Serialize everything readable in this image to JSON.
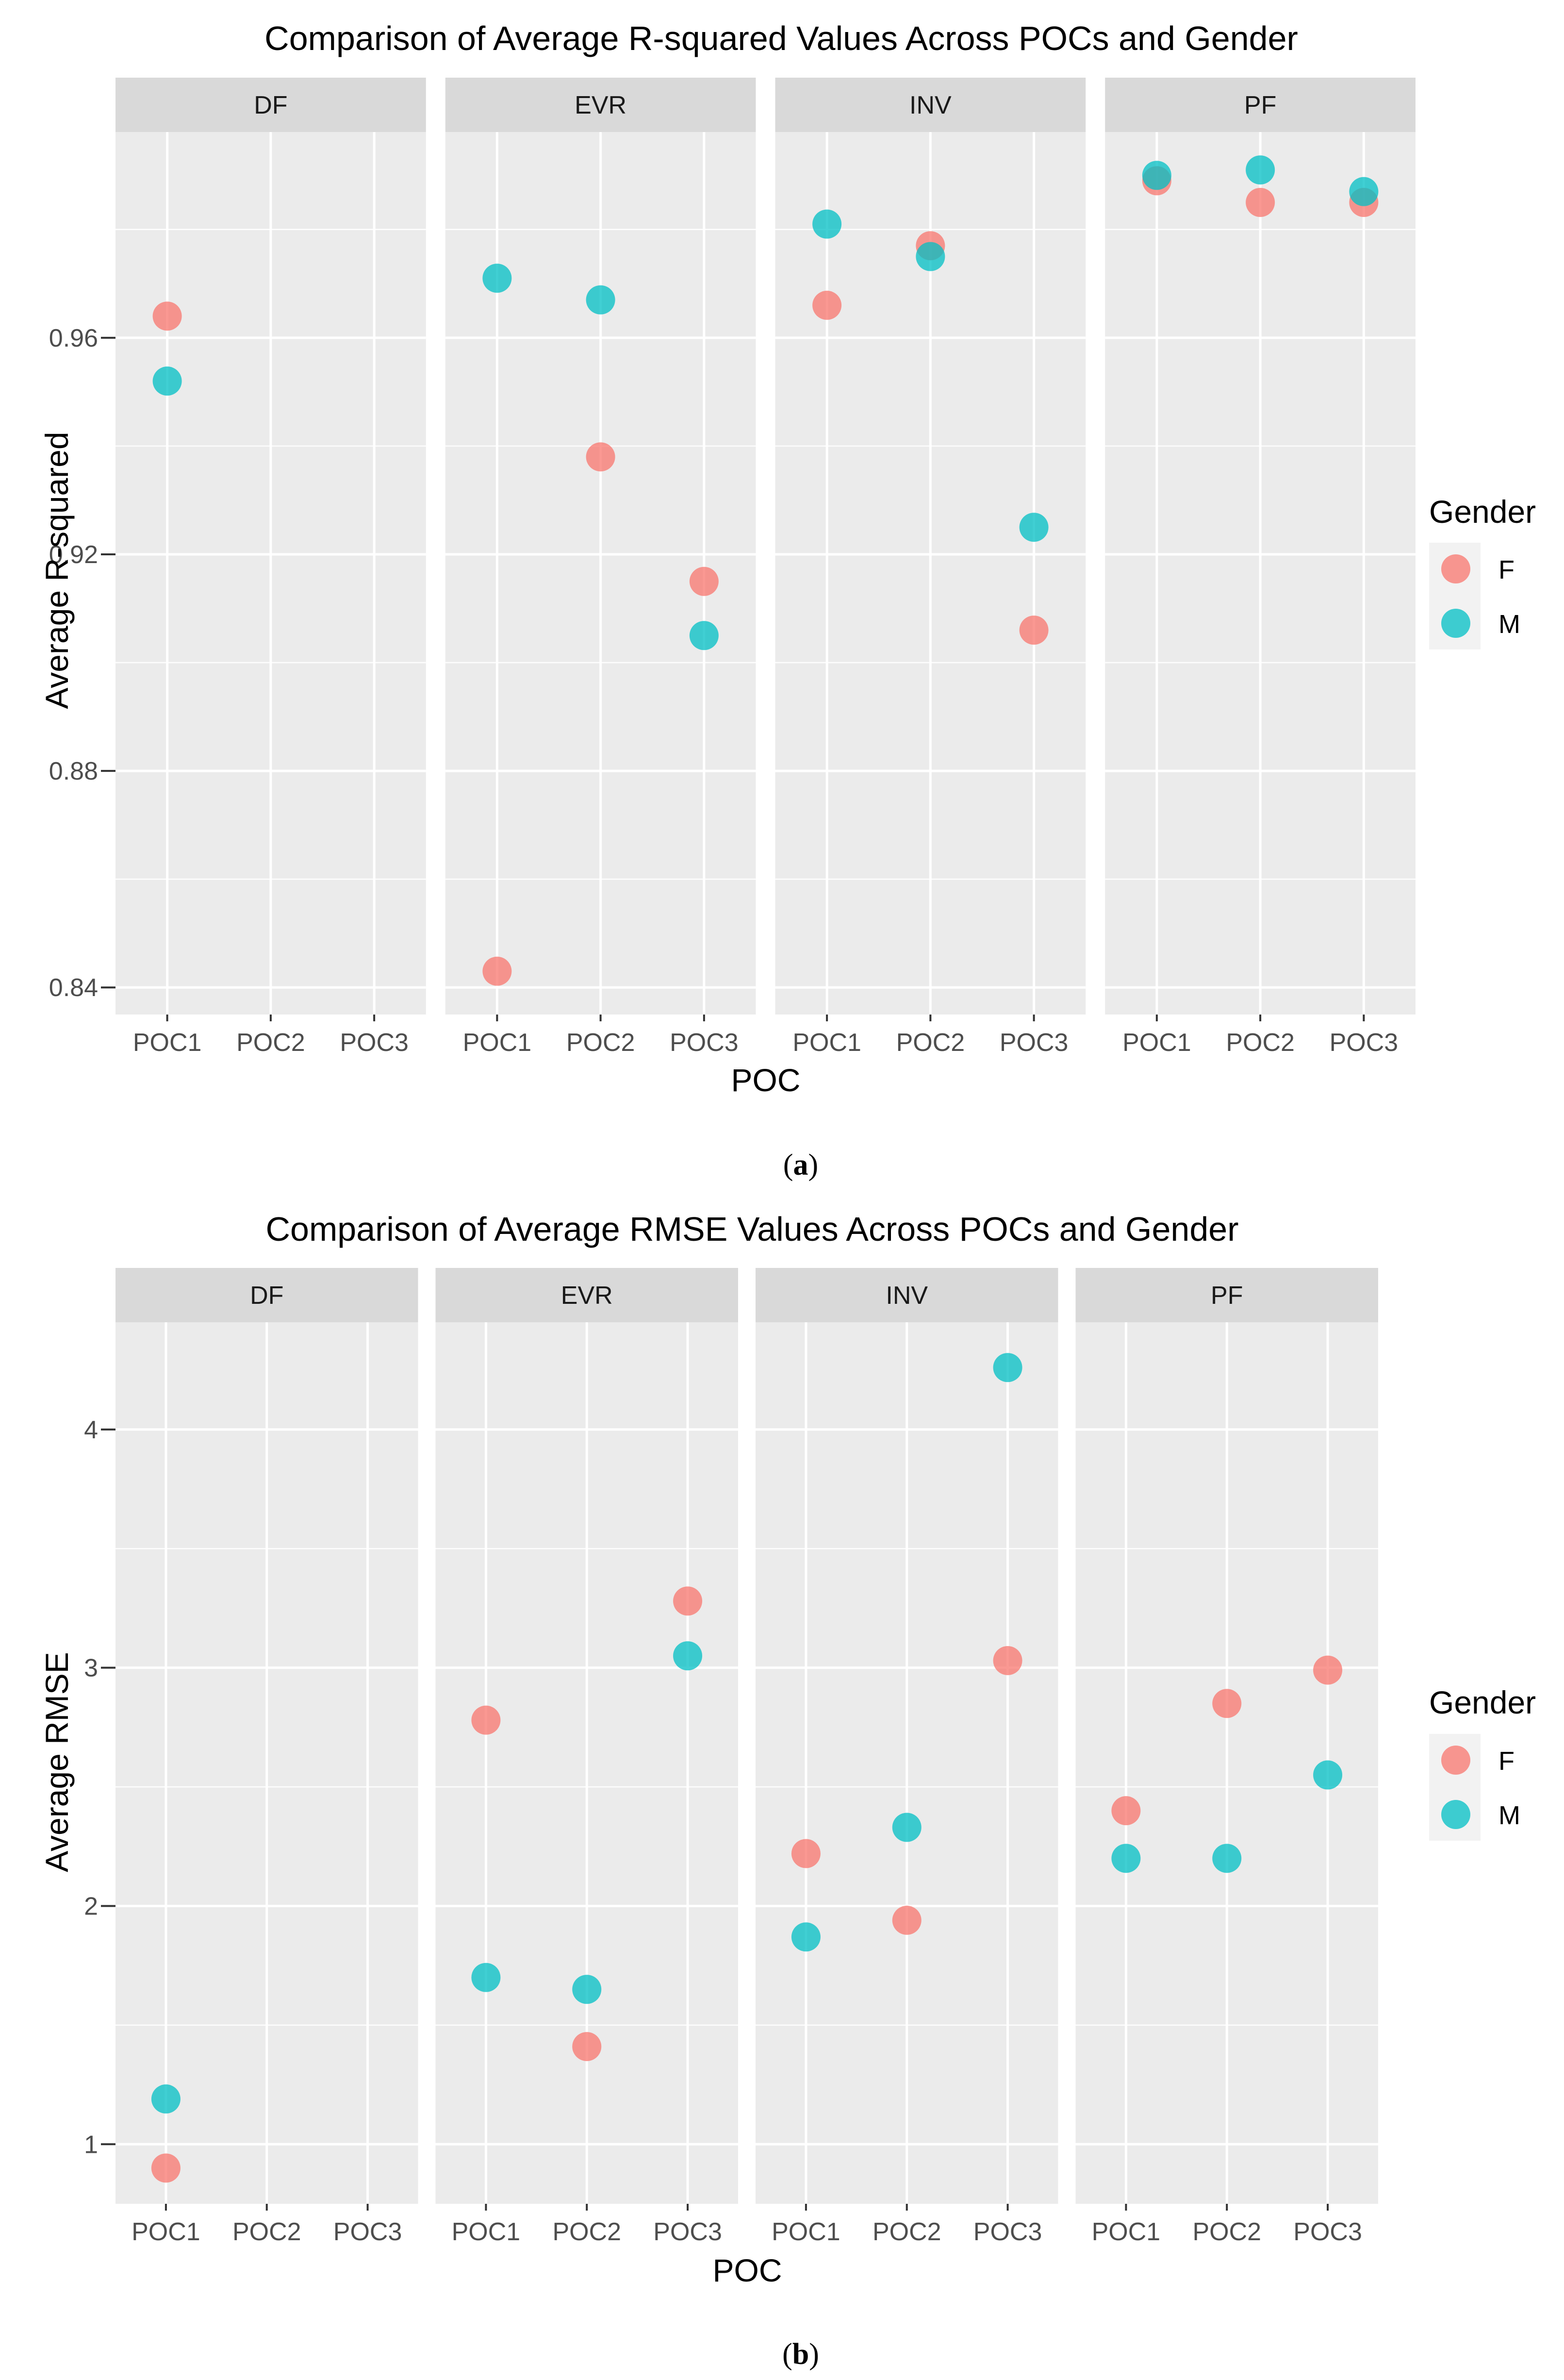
{
  "colors": {
    "F": "#F8766D",
    "M": "#00BFC4",
    "panel_bg": "#EBEBEB",
    "strip_bg": "#D9D9D9",
    "grid": "#FFFFFF"
  },
  "legend": {
    "title": "Gender",
    "entries": [
      "F",
      "M"
    ]
  },
  "chart_data": [
    {
      "type": "scatter",
      "caption_label": "a",
      "title": "Comparison of Average R-squared Values Across POCs and Gender",
      "xlabel": "POC",
      "ylabel": "Average R-squared",
      "facets": [
        "DF",
        "EVR",
        "INV",
        "PF"
      ],
      "categories": [
        "POC1",
        "POC2",
        "POC3"
      ],
      "ylim": [
        0.835,
        0.998
      ],
      "yticks": [
        0.84,
        0.88,
        0.92,
        0.96
      ],
      "yticklabels": [
        "0.84",
        "0.88",
        "0.92",
        "0.96"
      ],
      "series": [
        {
          "name": "F",
          "points": [
            {
              "facet": "DF",
              "x": "POC1",
              "y": 0.964
            },
            {
              "facet": "EVR",
              "x": "POC1",
              "y": 0.843
            },
            {
              "facet": "EVR",
              "x": "POC2",
              "y": 0.938
            },
            {
              "facet": "EVR",
              "x": "POC3",
              "y": 0.915
            },
            {
              "facet": "INV",
              "x": "POC1",
              "y": 0.966
            },
            {
              "facet": "INV",
              "x": "POC2",
              "y": 0.977
            },
            {
              "facet": "INV",
              "x": "POC3",
              "y": 0.906
            },
            {
              "facet": "PF",
              "x": "POC1",
              "y": 0.989
            },
            {
              "facet": "PF",
              "x": "POC2",
              "y": 0.985
            },
            {
              "facet": "PF",
              "x": "POC3",
              "y": 0.985
            }
          ]
        },
        {
          "name": "M",
          "points": [
            {
              "facet": "DF",
              "x": "POC1",
              "y": 0.952
            },
            {
              "facet": "EVR",
              "x": "POC1",
              "y": 0.971
            },
            {
              "facet": "EVR",
              "x": "POC2",
              "y": 0.967
            },
            {
              "facet": "EVR",
              "x": "POC3",
              "y": 0.905
            },
            {
              "facet": "INV",
              "x": "POC1",
              "y": 0.981
            },
            {
              "facet": "INV",
              "x": "POC2",
              "y": 0.975
            },
            {
              "facet": "INV",
              "x": "POC3",
              "y": 0.925
            },
            {
              "facet": "PF",
              "x": "POC1",
              "y": 0.99
            },
            {
              "facet": "PF",
              "x": "POC2",
              "y": 0.991
            },
            {
              "facet": "PF",
              "x": "POC3",
              "y": 0.987
            }
          ]
        }
      ]
    },
    {
      "type": "scatter",
      "caption_label": "b",
      "title": "Comparison of Average RMSE Values Across POCs and Gender",
      "xlabel": "POC",
      "ylabel": "Average RMSE",
      "facets": [
        "DF",
        "EVR",
        "INV",
        "PF"
      ],
      "categories": [
        "POC1",
        "POC2",
        "POC3"
      ],
      "ylim": [
        0.75,
        4.45
      ],
      "yticks": [
        1,
        2,
        3,
        4
      ],
      "yticklabels": [
        "1",
        "2",
        "3",
        "4"
      ],
      "series": [
        {
          "name": "F",
          "points": [
            {
              "facet": "DF",
              "x": "POC1",
              "y": 0.9
            },
            {
              "facet": "EVR",
              "x": "POC1",
              "y": 2.78
            },
            {
              "facet": "EVR",
              "x": "POC2",
              "y": 1.41
            },
            {
              "facet": "EVR",
              "x": "POC3",
              "y": 3.28
            },
            {
              "facet": "INV",
              "x": "POC1",
              "y": 2.22
            },
            {
              "facet": "INV",
              "x": "POC2",
              "y": 1.94
            },
            {
              "facet": "INV",
              "x": "POC3",
              "y": 3.03
            },
            {
              "facet": "PF",
              "x": "POC1",
              "y": 2.4
            },
            {
              "facet": "PF",
              "x": "POC2",
              "y": 2.85
            },
            {
              "facet": "PF",
              "x": "POC3",
              "y": 2.99
            }
          ]
        },
        {
          "name": "M",
          "points": [
            {
              "facet": "DF",
              "x": "POC1",
              "y": 1.19
            },
            {
              "facet": "EVR",
              "x": "POC1",
              "y": 1.7
            },
            {
              "facet": "EVR",
              "x": "POC2",
              "y": 1.65
            },
            {
              "facet": "EVR",
              "x": "POC3",
              "y": 3.05
            },
            {
              "facet": "INV",
              "x": "POC1",
              "y": 1.87
            },
            {
              "facet": "INV",
              "x": "POC2",
              "y": 2.33
            },
            {
              "facet": "INV",
              "x": "POC3",
              "y": 4.26
            },
            {
              "facet": "PF",
              "x": "POC1",
              "y": 2.2
            },
            {
              "facet": "PF",
              "x": "POC2",
              "y": 2.2
            },
            {
              "facet": "PF",
              "x": "POC3",
              "y": 2.55
            }
          ]
        }
      ]
    }
  ]
}
